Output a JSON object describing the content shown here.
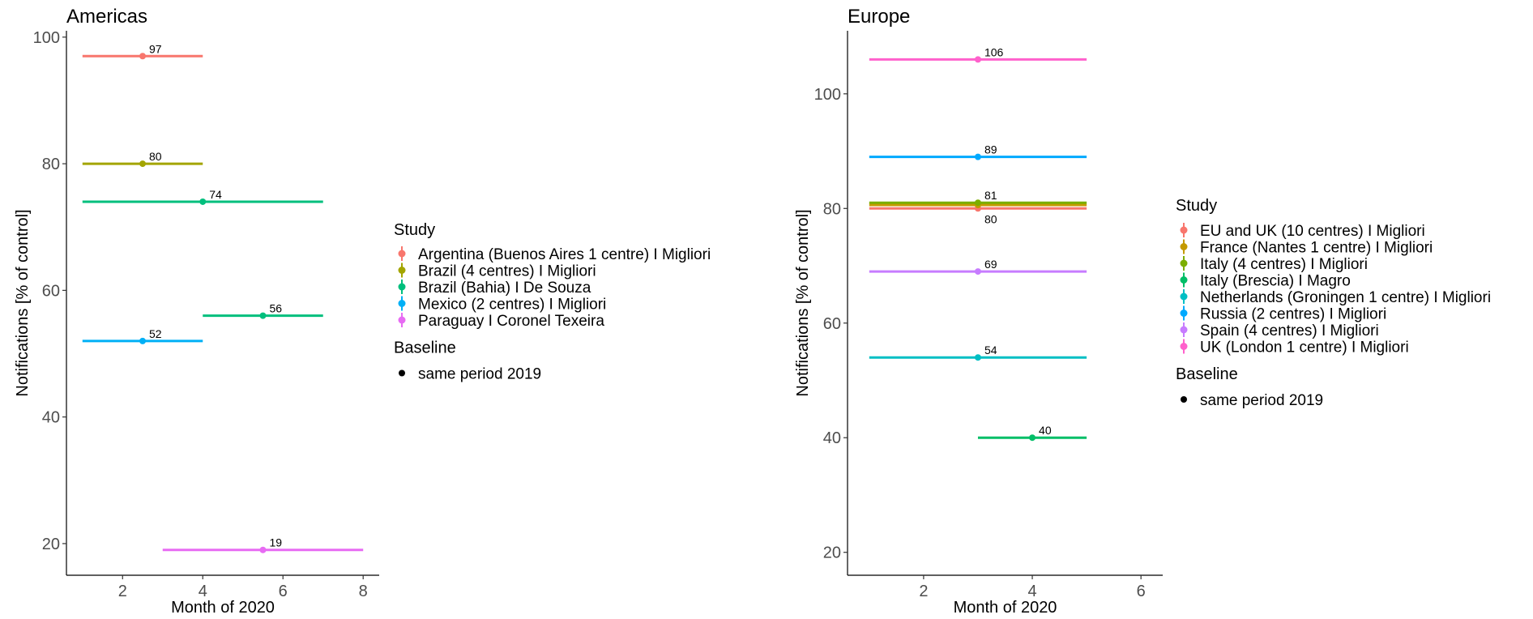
{
  "chart_data": [
    {
      "type": "errorbar",
      "title": "Americas",
      "xlabel": "Month of 2020",
      "ylabel": "Notifications [% of control]",
      "xlim": [
        0.6,
        8.4
      ],
      "ylim": [
        15,
        101
      ],
      "xticks": [
        2,
        4,
        6,
        8
      ],
      "yticks": [
        20,
        40,
        60,
        80,
        100
      ],
      "grid": false,
      "legend_position": "right",
      "legend_title": "Study",
      "baseline_title": "Baseline",
      "baseline_label": "same period 2019",
      "series": [
        {
          "name": "Argentina (Buenos Aires 1 centre) I Migliori",
          "color": "#F8766D",
          "x": 2.5,
          "xmin": 1,
          "xmax": 4,
          "y": 97,
          "label": "97"
        },
        {
          "name": "Brazil (4 centres) I Migliori",
          "color": "#A3A500",
          "x": 2.5,
          "xmin": 1,
          "xmax": 4,
          "y": 80,
          "label": "80"
        },
        {
          "name": "Brazil (Bahia) I De Souza",
          "color": "#00BF7D",
          "points": [
            {
              "x": 4,
              "xmin": 1,
              "xmax": 7,
              "y": 74,
              "label": "74"
            },
            {
              "x": 5.5,
              "xmin": 4,
              "xmax": 7,
              "y": 56,
              "label": "56"
            }
          ]
        },
        {
          "name": "Mexico (2 centres) I Migliori",
          "color": "#00B0F6",
          "x": 2.5,
          "xmin": 1,
          "xmax": 4,
          "y": 52,
          "label": "52"
        },
        {
          "name": "Paraguay I Coronel Texeira",
          "color": "#E76BF3",
          "x": 5.5,
          "xmin": 3,
          "xmax": 8,
          "y": 19,
          "label": "19"
        }
      ]
    },
    {
      "type": "errorbar",
      "title": "Europe",
      "xlabel": "Month of 2020",
      "ylabel": "Notifications [% of control]",
      "xlim": [
        0.6,
        6.4
      ],
      "ylim": [
        16,
        111
      ],
      "xticks": [
        2,
        4,
        6
      ],
      "yticks": [
        20,
        40,
        60,
        80,
        100
      ],
      "grid": false,
      "legend_position": "right",
      "legend_title": "Study",
      "baseline_title": "Baseline",
      "baseline_label": "same period 2019",
      "series": [
        {
          "name": "EU and UK (10 centres) I Migliori",
          "color": "#F8766D",
          "x": 3,
          "xmin": 1,
          "xmax": 5,
          "y": 80,
          "label": "80",
          "label_below": true
        },
        {
          "name": "France (Nantes 1 centre) I Migliori",
          "color": "#C49A00",
          "x": 3,
          "xmin": 1,
          "xmax": 5,
          "y": 80.6,
          "label": ""
        },
        {
          "name": "Italy (4 centres) I Migliori",
          "color": "#7CAE00",
          "x": 3,
          "xmin": 1,
          "xmax": 5,
          "y": 81,
          "label": "81"
        },
        {
          "name": "Italy (Brescia) I Magro",
          "color": "#00BE67",
          "x": 4,
          "xmin": 3,
          "xmax": 5,
          "y": 40,
          "label": "40"
        },
        {
          "name": "Netherlands (Groningen 1 centre) I Migliori",
          "color": "#00BFC4",
          "x": 3,
          "xmin": 1,
          "xmax": 5,
          "y": 54,
          "label": "54"
        },
        {
          "name": "Russia (2 centres) I Migliori",
          "color": "#00A9FF",
          "x": 3,
          "xmin": 1,
          "xmax": 5,
          "y": 89,
          "label": "89"
        },
        {
          "name": "Spain (4 centres) I Migliori",
          "color": "#C77CFF",
          "x": 3,
          "xmin": 1,
          "xmax": 5,
          "y": 69,
          "label": "69"
        },
        {
          "name": "UK (London 1 centre) I Migliori",
          "color": "#FF61CC",
          "x": 3,
          "xmin": 1,
          "xmax": 5,
          "y": 106,
          "label": "106"
        }
      ]
    }
  ]
}
